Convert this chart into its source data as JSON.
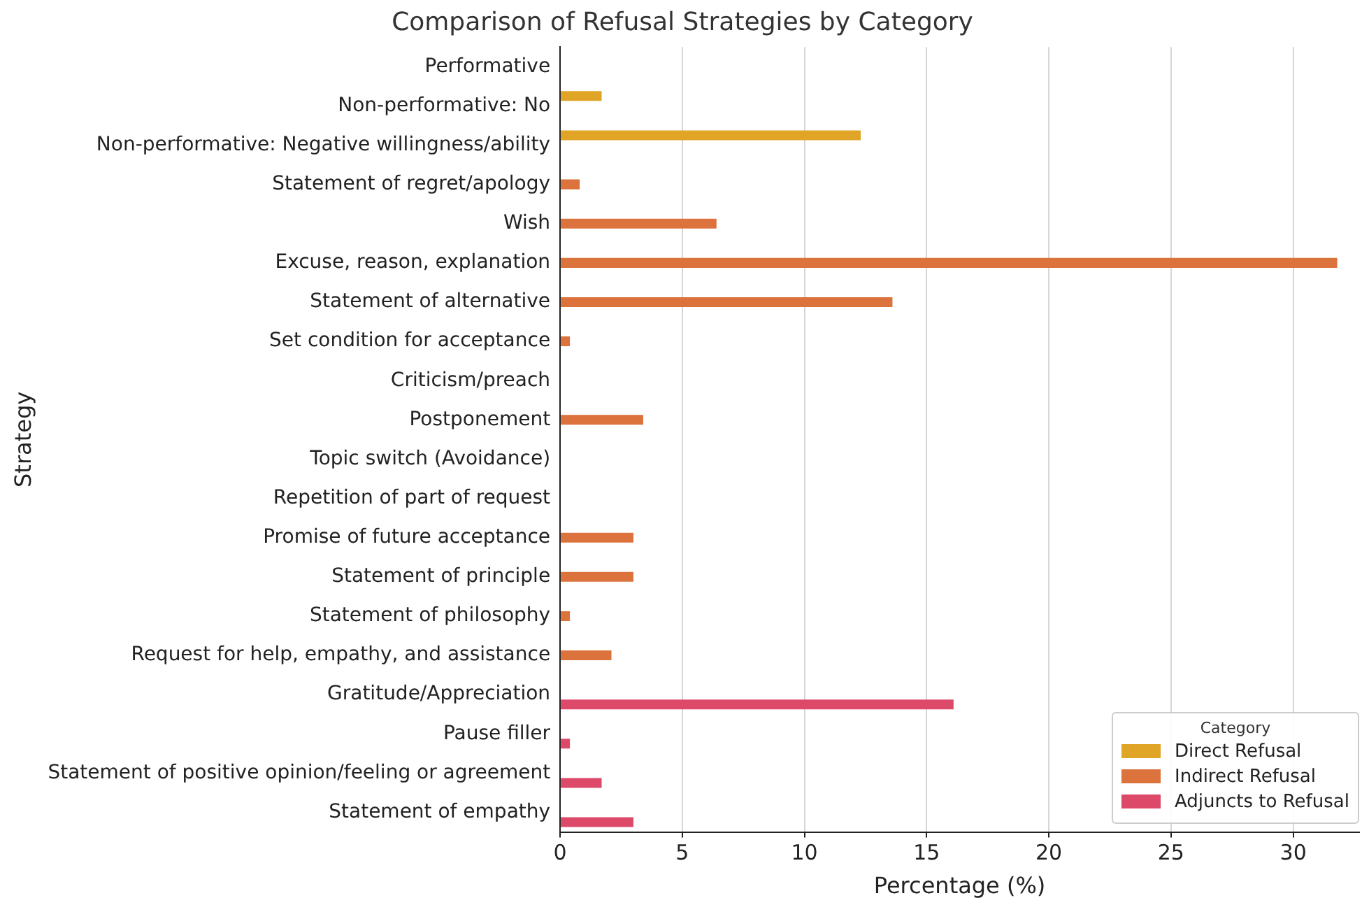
{
  "chart_data": {
    "type": "bar",
    "orientation": "horizontal",
    "title": "Comparison of Refusal Strategies by Category",
    "xlabel": "Percentage (%)",
    "ylabel": "Strategy",
    "legend_title": "Category",
    "legend": "bottom right",
    "grid": "x",
    "categories": [
      "Performative",
      "Non-performative: No",
      "Non-performative: Negative willingness/ability",
      "Statement of regret/apology",
      "Wish",
      "Excuse, reason, explanation",
      "Statement of alternative",
      "Set condition for acceptance",
      "Criticism/preach",
      "Postponement",
      "Topic switch (Avoidance)",
      "Repetition of part of request",
      "Promise of future acceptance",
      "Statement of principle",
      "Statement of philosophy",
      "Request for help, empathy, and assistance",
      "Gratitude/Appreciation",
      "Pause filler",
      "Statement of positive opinion/feeling or agreement",
      "Statement of empathy"
    ],
    "xlim": [
      0,
      32.7
    ],
    "xticks": [
      0,
      5,
      10,
      15,
      20,
      25,
      30
    ],
    "series": [
      {
        "name": "Direct Refusal",
        "color": "#e0a526",
        "values": [
          0,
          1.7,
          12.3,
          null,
          null,
          null,
          null,
          null,
          null,
          null,
          null,
          null,
          null,
          null,
          null,
          null,
          null,
          null,
          null,
          null
        ]
      },
      {
        "name": "Indirect Refusal",
        "color": "#dc723c",
        "values": [
          null,
          null,
          null,
          0.8,
          6.4,
          31.8,
          13.6,
          0.4,
          0,
          3.4,
          0,
          0,
          3.0,
          3.0,
          0.4,
          2.1,
          null,
          null,
          null,
          null
        ]
      },
      {
        "name": "Adjuncts to Refusal",
        "color": "#dd4968",
        "values": [
          null,
          null,
          null,
          null,
          null,
          null,
          null,
          null,
          null,
          null,
          null,
          null,
          null,
          null,
          null,
          null,
          16.1,
          0.4,
          1.7,
          3.0
        ]
      }
    ]
  }
}
